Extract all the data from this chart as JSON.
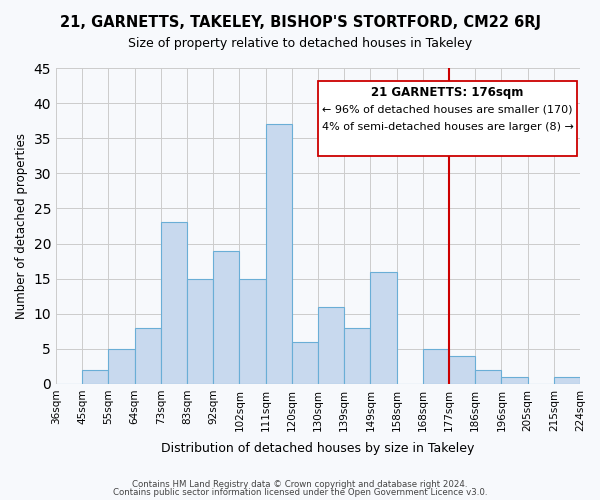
{
  "title": "21, GARNETTS, TAKELEY, BISHOP'S STORTFORD, CM22 6RJ",
  "subtitle": "Size of property relative to detached houses in Takeley",
  "xlabel": "Distribution of detached houses by size in Takeley",
  "ylabel": "Number of detached properties",
  "bin_labels": [
    "36sqm",
    "45sqm",
    "55sqm",
    "64sqm",
    "73sqm",
    "83sqm",
    "92sqm",
    "102sqm",
    "111sqm",
    "120sqm",
    "130sqm",
    "139sqm",
    "149sqm",
    "158sqm",
    "168sqm",
    "177sqm",
    "186sqm",
    "196sqm",
    "205sqm",
    "215sqm",
    "224sqm"
  ],
  "bar_heights": [
    0,
    2,
    5,
    8,
    23,
    15,
    19,
    15,
    37,
    6,
    11,
    8,
    16,
    0,
    5,
    4,
    2,
    1,
    0,
    1
  ],
  "bar_color": "#c8d9ee",
  "bar_edge_color": "#6aaed6",
  "ylim": [
    0,
    45
  ],
  "yticks": [
    0,
    5,
    10,
    15,
    20,
    25,
    30,
    35,
    40,
    45
  ],
  "vline_color": "#cc0000",
  "vline_index": 15,
  "annotation_title": "21 GARNETTS: 176sqm",
  "annotation_line1": "← 96% of detached houses are smaller (170)",
  "annotation_line2": "4% of semi-detached houses are larger (8) →",
  "footer_line1": "Contains HM Land Registry data © Crown copyright and database right 2024.",
  "footer_line2": "Contains public sector information licensed under the Open Government Licence v3.0.",
  "background_color": "#f7f9fc",
  "grid_color": "#cccccc"
}
